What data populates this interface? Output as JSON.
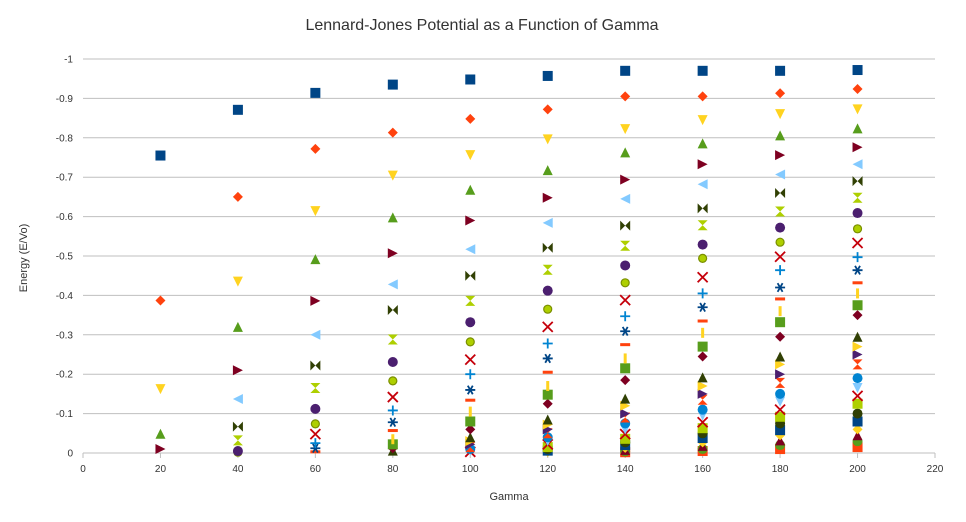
{
  "chart_data": {
    "type": "scatter",
    "title": "Lennard-Jones Potential as a Function of Gamma",
    "xlabel": "Gamma",
    "ylabel": "Energy (E/Vo)",
    "xlim": [
      0,
      220
    ],
    "ylim": [
      0,
      -1
    ],
    "xticks": [
      "0",
      "20",
      "40",
      "60",
      "80",
      "100",
      "120",
      "140",
      "160",
      "180",
      "200",
      "220"
    ],
    "yticks": [
      "0",
      "-0.1",
      "-0.2",
      "-0.3",
      "-0.4",
      "-0.5",
      "-0.6",
      "-0.7",
      "-0.8",
      "-0.9",
      "-1"
    ],
    "grid": "horizontal",
    "legend": "none",
    "x": [
      20,
      40,
      60,
      80,
      100,
      120,
      140,
      160,
      180,
      200
    ],
    "series": [
      {
        "color": "#004586",
        "marker": "square",
        "values": [
          -0.755,
          -0.871,
          -0.914,
          -0.935,
          -0.948,
          -0.957,
          -0.97,
          -0.97,
          -0.97,
          -0.972
        ]
      },
      {
        "color": "#ff420e",
        "marker": "diamond",
        "values": [
          -0.387,
          -0.65,
          -0.772,
          -0.813,
          -0.848,
          -0.872,
          -0.905,
          -0.905,
          -0.913,
          -0.924
        ]
      },
      {
        "color": "#ffd320",
        "marker": "triangle-down",
        "values": [
          -0.162,
          -0.435,
          -0.614,
          -0.704,
          -0.756,
          -0.796,
          -0.822,
          -0.845,
          -0.86,
          -0.872
        ]
      },
      {
        "color": "#579d1c",
        "marker": "triangle-up",
        "values": [
          -0.049,
          -0.32,
          -0.492,
          -0.598,
          -0.668,
          -0.718,
          -0.763,
          -0.786,
          -0.806,
          -0.824
        ]
      },
      {
        "color": "#7e0021",
        "marker": "triangle-right",
        "values": [
          -0.01,
          -0.21,
          -0.386,
          -0.507,
          -0.59,
          -0.648,
          -0.694,
          -0.733,
          -0.756,
          -0.776
        ]
      },
      {
        "color": "#83caff",
        "marker": "triangle-left",
        "values": [
          null,
          -0.137,
          -0.3,
          -0.428,
          -0.517,
          -0.584,
          -0.645,
          -0.682,
          -0.707,
          -0.733
        ]
      },
      {
        "color": "#314004",
        "marker": "bowtie",
        "values": [
          null,
          -0.067,
          -0.222,
          -0.363,
          -0.45,
          -0.521,
          -0.577,
          -0.621,
          -0.66,
          -0.69
        ]
      },
      {
        "color": "#aecf00",
        "marker": "hourglass",
        "values": [
          null,
          -0.032,
          -0.165,
          -0.288,
          -0.386,
          -0.465,
          -0.526,
          -0.578,
          -0.613,
          -0.648
        ]
      },
      {
        "color": "#4b1f6f",
        "marker": "circle",
        "values": [
          null,
          -0.005,
          -0.112,
          -0.231,
          -0.332,
          -0.412,
          -0.476,
          -0.529,
          -0.572,
          -0.609
        ]
      },
      {
        "color": "#aecf00",
        "marker": "circle-ring",
        "values": [
          null,
          -0.002,
          -0.074,
          -0.183,
          -0.282,
          -0.365,
          -0.432,
          -0.494,
          -0.535,
          -0.569
        ]
      },
      {
        "color": "#c5000b",
        "marker": "x",
        "values": [
          null,
          null,
          -0.048,
          -0.142,
          -0.237,
          -0.32,
          -0.388,
          -0.446,
          -0.498,
          -0.533
        ]
      },
      {
        "color": "#0084d1",
        "marker": "plus",
        "values": [
          null,
          null,
          -0.025,
          -0.108,
          -0.2,
          -0.278,
          -0.347,
          -0.405,
          -0.464,
          -0.497
        ]
      },
      {
        "color": "#004586",
        "marker": "asterisk",
        "values": [
          null,
          null,
          -0.012,
          -0.078,
          -0.16,
          -0.24,
          -0.309,
          -0.37,
          -0.42,
          -0.464
        ]
      },
      {
        "color": "#ff420e",
        "marker": "dash",
        "values": [
          null,
          null,
          -0.003,
          -0.057,
          -0.134,
          -0.205,
          -0.275,
          -0.335,
          -0.391,
          -0.432
        ]
      },
      {
        "color": "#ffd320",
        "marker": "bar",
        "values": [
          null,
          null,
          null,
          -0.035,
          -0.105,
          -0.17,
          -0.24,
          -0.305,
          -0.36,
          -0.405
        ]
      },
      {
        "color": "#579d1c",
        "marker": "square",
        "values": [
          null,
          null,
          null,
          -0.022,
          -0.08,
          -0.148,
          -0.215,
          -0.27,
          -0.332,
          -0.375
        ]
      },
      {
        "color": "#7e0021",
        "marker": "diamond",
        "values": [
          null,
          null,
          null,
          -0.012,
          -0.06,
          -0.125,
          -0.185,
          -0.245,
          -0.295,
          -0.35
        ]
      },
      {
        "color": "#314004",
        "marker": "triangle-up",
        "values": [
          null,
          null,
          null,
          -0.006,
          -0.04,
          -0.085,
          -0.138,
          -0.192,
          -0.245,
          -0.295
        ]
      },
      {
        "color": "#ffd320",
        "marker": "triangle-right",
        "values": [
          null,
          null,
          null,
          null,
          -0.03,
          -0.072,
          -0.12,
          -0.17,
          -0.225,
          -0.27
        ]
      },
      {
        "color": "#4b1f6f",
        "marker": "triangle-right",
        "values": [
          null,
          null,
          null,
          null,
          -0.022,
          -0.06,
          -0.1,
          -0.15,
          -0.2,
          -0.25
        ]
      },
      {
        "color": "#ff420e",
        "marker": "hourglass",
        "values": [
          null,
          null,
          null,
          null,
          -0.015,
          -0.05,
          -0.09,
          -0.135,
          -0.178,
          -0.225
        ]
      },
      {
        "color": "#0084d1",
        "marker": "circle",
        "values": [
          null,
          null,
          null,
          null,
          -0.01,
          -0.04,
          -0.075,
          -0.11,
          -0.15,
          -0.19
        ]
      },
      {
        "color": "#83caff",
        "marker": "triangle-down",
        "values": [
          null,
          null,
          null,
          null,
          -0.006,
          -0.03,
          -0.06,
          -0.095,
          -0.13,
          -0.165
        ]
      },
      {
        "color": "#c5000b",
        "marker": "x",
        "values": [
          null,
          null,
          null,
          null,
          -0.003,
          -0.022,
          -0.048,
          -0.078,
          -0.11,
          -0.145
        ]
      },
      {
        "color": "#aecf00",
        "marker": "square",
        "values": [
          null,
          null,
          null,
          null,
          null,
          -0.015,
          -0.036,
          -0.063,
          -0.092,
          -0.125
        ]
      },
      {
        "color": "#314004",
        "marker": "circle",
        "values": [
          null,
          null,
          null,
          null,
          null,
          -0.01,
          -0.027,
          -0.05,
          -0.075,
          -0.1
        ]
      },
      {
        "color": "#004586",
        "marker": "square",
        "values": [
          null,
          null,
          null,
          null,
          null,
          -0.006,
          -0.02,
          -0.038,
          -0.058,
          -0.08
        ]
      },
      {
        "color": "#ffd320",
        "marker": "diamond",
        "values": [
          null,
          null,
          null,
          null,
          null,
          -0.003,
          -0.013,
          -0.027,
          -0.045,
          -0.06
        ]
      },
      {
        "color": "#7e0021",
        "marker": "triangle-up",
        "values": [
          null,
          null,
          null,
          null,
          null,
          null,
          -0.008,
          -0.018,
          -0.032,
          -0.045
        ]
      },
      {
        "color": "#579d1c",
        "marker": "circle",
        "values": [
          null,
          null,
          null,
          null,
          null,
          null,
          -0.004,
          -0.01,
          -0.02,
          -0.03
        ]
      },
      {
        "color": "#ff420e",
        "marker": "square",
        "values": [
          null,
          null,
          null,
          null,
          null,
          null,
          -0.002,
          -0.005,
          -0.01,
          -0.015
        ]
      }
    ]
  }
}
